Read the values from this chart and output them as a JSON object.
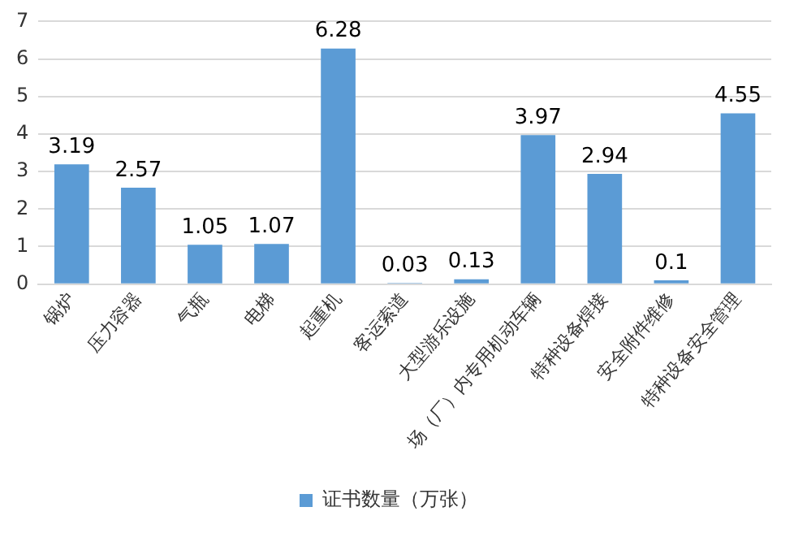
{
  "chart_data": {
    "type": "bar",
    "categories": [
      "锅炉",
      "压力容器",
      "气瓶",
      "电梯",
      "起重机",
      "客运索道",
      "大型游乐设施",
      "场（厂）内专用机动车辆",
      "特种设备焊接",
      "安全附件维修",
      "特种设备安全管理"
    ],
    "series": [
      {
        "name": "证书数量（万张）",
        "color": "#5b9bd5",
        "values": [
          3.19,
          2.57,
          1.05,
          1.07,
          6.28,
          0.03,
          0.13,
          3.97,
          2.94,
          0.1,
          4.55
        ]
      }
    ],
    "ylim": [
      0,
      7
    ],
    "yticks": [
      0,
      1,
      2,
      3,
      4,
      5,
      6,
      7
    ],
    "grid": "y",
    "legend": "bottom",
    "data_labels": true
  }
}
